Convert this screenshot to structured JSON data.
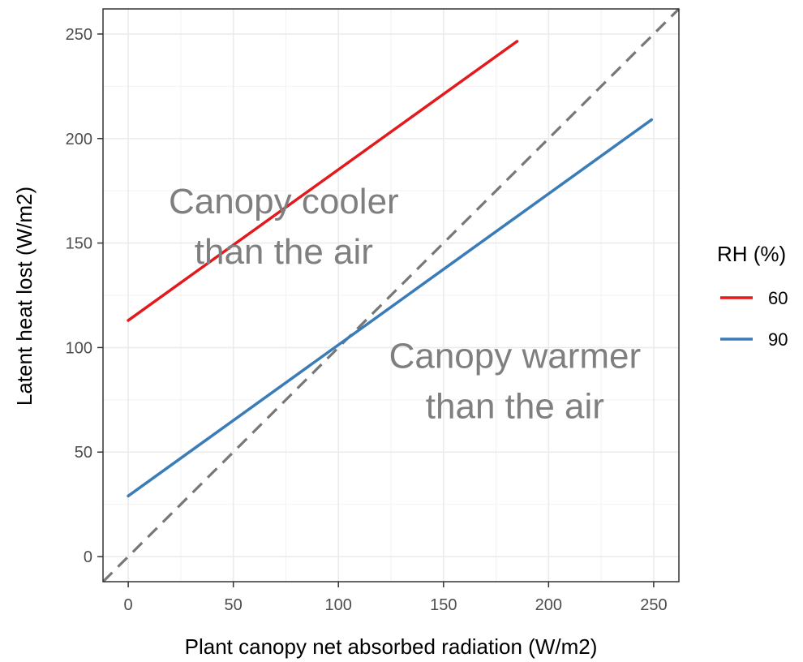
{
  "chart_data": {
    "type": "line",
    "title": "",
    "xlabel": "Plant canopy net absorbed radiation (W/m2)",
    "ylabel": "Latent heat lost (W/m2)",
    "xlim": [
      -12,
      262
    ],
    "ylim": [
      -12,
      262
    ],
    "x_ticks": [
      0,
      50,
      100,
      150,
      200,
      250
    ],
    "y_ticks": [
      0,
      50,
      100,
      150,
      200,
      250
    ],
    "grid": true,
    "legend": {
      "title": "RH (%)",
      "position": "right"
    },
    "series": [
      {
        "name": "60",
        "color": "#e31a1c",
        "x": [
          0,
          185
        ],
        "y": [
          113,
          246.5
        ]
      },
      {
        "name": "90",
        "color": "#3a7cb7",
        "x": [
          0,
          249
        ],
        "y": [
          29,
          209
        ]
      }
    ],
    "reference_line": {
      "style": "dashed",
      "color": "#777777",
      "x": [
        -12,
        262
      ],
      "y": [
        -12,
        262
      ]
    },
    "annotations": [
      {
        "lines": [
          "Canopy cooler",
          "than the air"
        ],
        "x": 74,
        "y": 158
      },
      {
        "lines": [
          "Canopy warmer",
          "than the air"
        ],
        "x": 184,
        "y": 84
      }
    ]
  }
}
